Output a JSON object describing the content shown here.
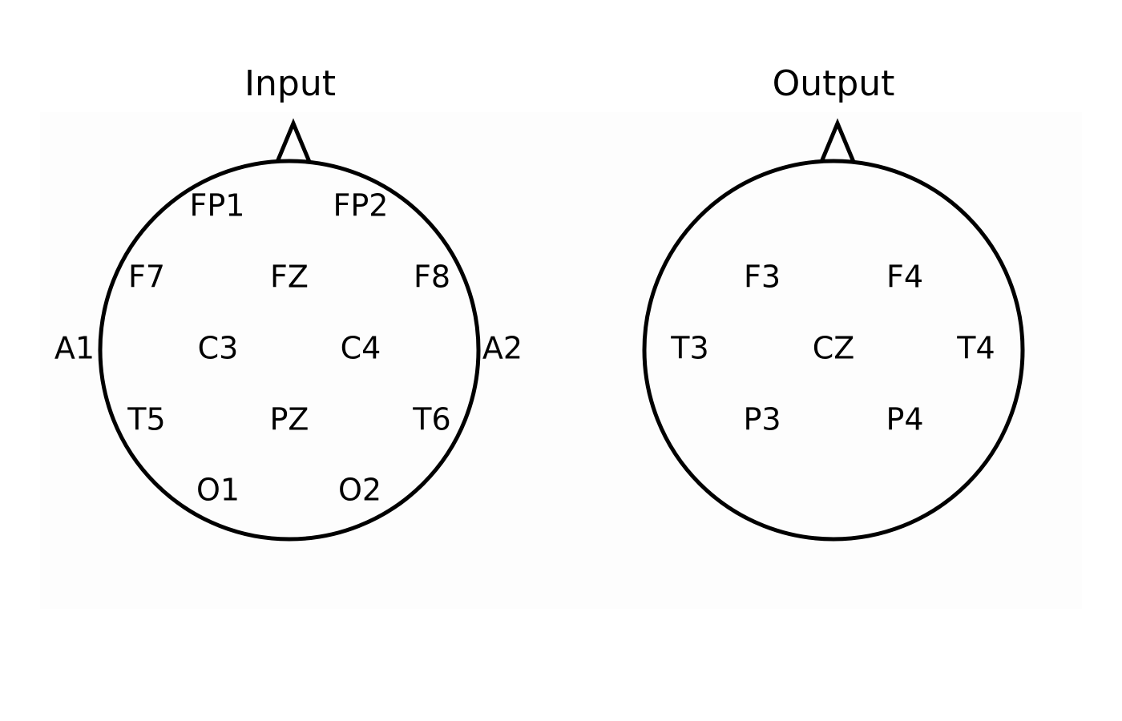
{
  "diagrams": [
    {
      "title": "Input",
      "electrodes": [
        "FP1",
        "FP2",
        "F7",
        "FZ",
        "F8",
        "A1",
        "C3",
        "C4",
        "A2",
        "T5",
        "PZ",
        "T6",
        "O1",
        "O2"
      ]
    },
    {
      "title": "Output",
      "electrodes": [
        "F3",
        "F4",
        "T3",
        "CZ",
        "T4",
        "P3",
        "P4"
      ]
    }
  ],
  "colors": {
    "stroke": "#000000",
    "text": "#000000",
    "background": "#ffffff"
  }
}
